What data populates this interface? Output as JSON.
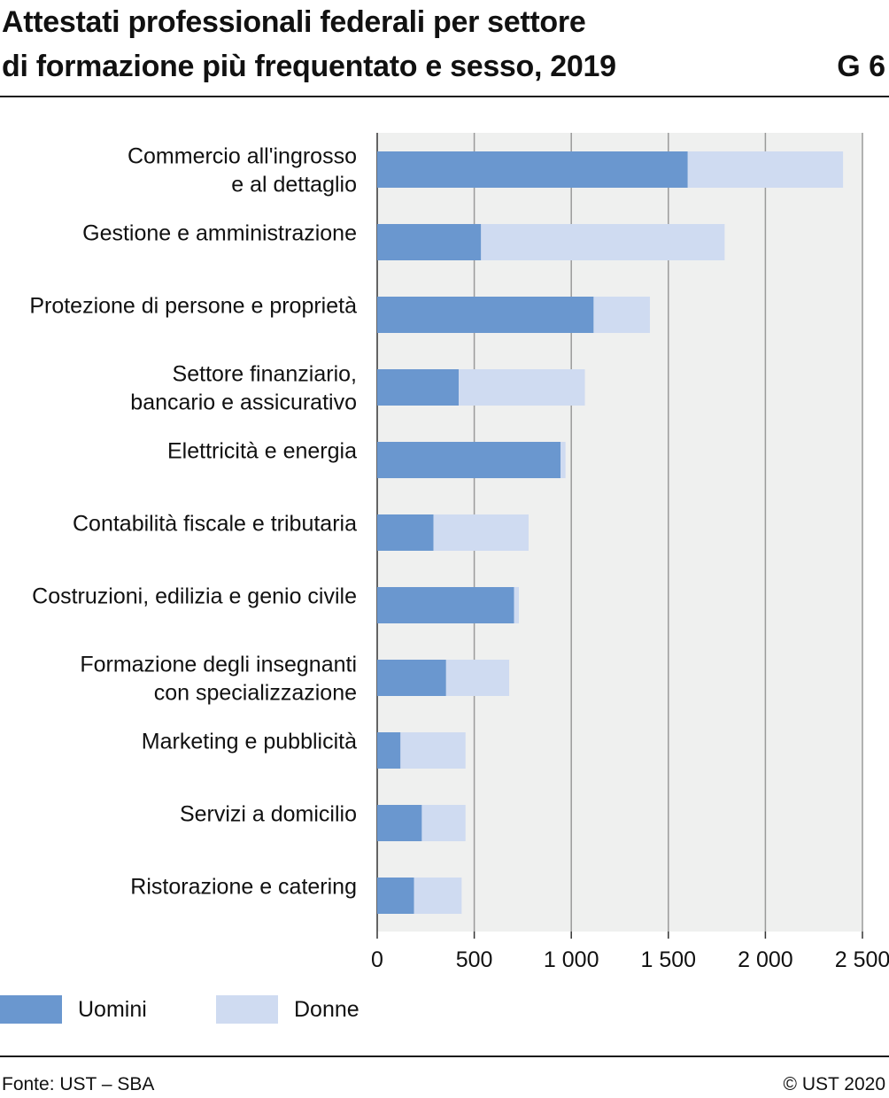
{
  "header": {
    "title_line1": "Attestati professionali federali per settore",
    "title_line2": "di formazione più frequentato e sesso, 2019",
    "chart_id": "G 6"
  },
  "colors": {
    "uomini": "#6a97cf",
    "donne": "#cfdbf1",
    "plot_bg": "#eff0ef",
    "grid": "#9a9a9a"
  },
  "chart_data": {
    "type": "bar",
    "orientation": "horizontal",
    "stacked": true,
    "title": "Attestati professionali federali per settore di formazione più frequentato e sesso, 2019",
    "categories": [
      [
        "Commercio all'ingrosso",
        "e al dettaglio"
      ],
      [
        "Gestione e amministrazione"
      ],
      [
        "Protezione di persone e proprietà"
      ],
      [
        "Settore finanziario,",
        "bancario e assicurativo"
      ],
      [
        "Elettricità e energia"
      ],
      [
        "Contabilità fiscale e tributaria"
      ],
      [
        "Costruzioni, edilizia e genio civile"
      ],
      [
        "Formazione degli insegnanti",
        "con specializzazione"
      ],
      [
        "Marketing e pubblicità"
      ],
      [
        "Servizi a domicilio"
      ],
      [
        "Ristorazione e catering"
      ]
    ],
    "series": [
      {
        "name": "Uomini",
        "values": [
          1600,
          535,
          1115,
          420,
          945,
          290,
          705,
          355,
          120,
          230,
          190
        ]
      },
      {
        "name": "Donne",
        "values": [
          800,
          1255,
          290,
          650,
          25,
          490,
          25,
          325,
          335,
          225,
          245
        ]
      }
    ],
    "xlim": [
      0,
      2500
    ],
    "xticks": [
      0,
      500,
      1000,
      1500,
      2000,
      2500
    ],
    "xtick_labels": [
      "0",
      "500",
      "1 000",
      "1 500",
      "2 000",
      "2 500"
    ],
    "grid": true,
    "legend_position": "bottom-left"
  },
  "footer": {
    "source": "Fonte: UST – SBA",
    "copyright": "© UST 2020"
  }
}
